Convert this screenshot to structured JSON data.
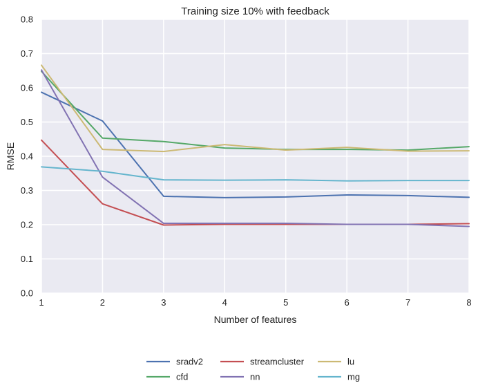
{
  "chart_data": {
    "type": "line",
    "title": "Training size 10% with feedback",
    "xlabel": "Number of features",
    "ylabel": "RMSE",
    "x": [
      1,
      2,
      3,
      4,
      5,
      6,
      7,
      8
    ],
    "xlim": [
      1,
      8
    ],
    "ylim": [
      0,
      0.8
    ],
    "x_ticks": [
      "1",
      "2",
      "3",
      "4",
      "5",
      "6",
      "7",
      "8"
    ],
    "y_ticks": [
      "0.0",
      "0.1",
      "0.2",
      "0.3",
      "0.4",
      "0.5",
      "0.6",
      "0.7",
      "0.8"
    ],
    "grid": true,
    "background": "#eaeaf2",
    "legend_position": "bottom-center",
    "series": [
      {
        "name": "sradv2",
        "color": "#4c72b0",
        "values": [
          0.587,
          0.503,
          0.283,
          0.279,
          0.281,
          0.287,
          0.285,
          0.28
        ]
      },
      {
        "name": "cfd",
        "color": "#55a868",
        "values": [
          0.648,
          0.453,
          0.443,
          0.424,
          0.42,
          0.42,
          0.418,
          0.428
        ]
      },
      {
        "name": "streamcluster",
        "color": "#c44e52",
        "values": [
          0.447,
          0.261,
          0.199,
          0.201,
          0.201,
          0.201,
          0.201,
          0.203
        ]
      },
      {
        "name": "nn",
        "color": "#8172b2",
        "values": [
          0.652,
          0.339,
          0.204,
          0.204,
          0.204,
          0.201,
          0.201,
          0.195
        ]
      },
      {
        "name": "lu",
        "color": "#ccb974",
        "values": [
          0.666,
          0.42,
          0.414,
          0.434,
          0.418,
          0.426,
          0.415,
          0.416
        ]
      },
      {
        "name": "mg",
        "color": "#64b5cd",
        "values": [
          0.369,
          0.356,
          0.331,
          0.33,
          0.331,
          0.328,
          0.329,
          0.329
        ]
      }
    ]
  }
}
